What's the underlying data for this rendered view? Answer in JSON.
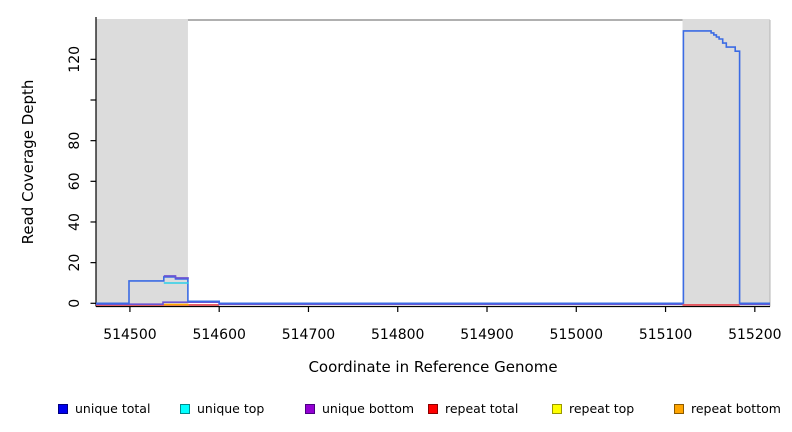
{
  "chart_data": {
    "type": "line",
    "title": "",
    "xlabel": "Coordinate in Reference Genome",
    "ylabel": "Read Coverage Depth",
    "xlim": [
      514462,
      515217
    ],
    "ylim": [
      0,
      139.4
    ],
    "grid": false,
    "legend_position": "bottom",
    "x_ticks": [
      {
        "v": 514500,
        "label": "514500"
      },
      {
        "v": 514600,
        "label": "514600"
      },
      {
        "v": 514700,
        "label": "514700"
      },
      {
        "v": 514800,
        "label": "514800"
      },
      {
        "v": 514900,
        "label": "514900"
      },
      {
        "v": 515000,
        "label": "515000"
      },
      {
        "v": 515100,
        "label": "515100"
      },
      {
        "v": 515200,
        "label": "515200"
      }
    ],
    "y_ticks": [
      {
        "v": 0,
        "label": "0"
      },
      {
        "v": 20,
        "label": "20"
      },
      {
        "v": 40,
        "label": "40"
      },
      {
        "v": 60,
        "label": "60"
      },
      {
        "v": 80,
        "label": "80"
      },
      {
        "v": 100,
        "label": ""
      },
      {
        "v": 120,
        "label": "120"
      }
    ],
    "shaded_regions": [
      {
        "x0": 514462,
        "x1": 514565,
        "fill": "#dcdcdc"
      },
      {
        "x0": 515119,
        "x1": 515217,
        "fill": "#dcdcdc"
      }
    ],
    "series": [
      {
        "id": "repeat-total",
        "legend": "repeat total",
        "line_color": "#e8454f",
        "legend_fill": "#ff0000",
        "legend_border": "#8b0000",
        "segments": [
          {
            "z": -3,
            "dy": 1.6,
            "points": [
              [
                514462,
                0
              ],
              [
                514600,
                0
              ]
            ]
          },
          {
            "z": -3,
            "dy": 1.6,
            "points": [
              [
                515119,
                0
              ],
              [
                515183,
                0
              ]
            ]
          }
        ]
      },
      {
        "id": "repeat-top",
        "legend": "repeat top",
        "line_color": "#f5e800",
        "legend_fill": "#ffff00",
        "legend_border": "#999900",
        "segments": []
      },
      {
        "id": "repeat-bottom",
        "legend": "repeat bottom",
        "line_color": "#ffa500",
        "legend_fill": "#ffa500",
        "legend_border": "#8b5a00",
        "segments": [
          {
            "z": -2,
            "dy": 1.3,
            "points": [
              [
                514538,
                0
              ],
              [
                514566,
                0
              ]
            ]
          }
        ]
      },
      {
        "id": "unique-bottom",
        "legend": "unique bottom",
        "line_color": "#6c53d2",
        "legend_fill": "#9400d3",
        "legend_border": "#4b0082",
        "segments": [
          {
            "z": -1,
            "dy": 0.9,
            "points": [
              [
                514462,
                0
              ],
              [
                514537,
                0
              ],
              [
                514537,
                1
              ],
              [
                514600,
                1
              ],
              [
                514600,
                0
              ],
              [
                515119,
                0
              ]
            ]
          },
          {
            "z": -1,
            "dy": 0.9,
            "points": [
              [
                515183,
                0
              ],
              [
                515217,
                0
              ]
            ]
          },
          {
            "z": 2,
            "dy": -1.0,
            "points": [
              [
                514538,
                13
              ],
              [
                514551,
                13
              ],
              [
                514551,
                12
              ],
              [
                514566,
                12
              ]
            ]
          }
        ]
      },
      {
        "id": "unique-total",
        "legend": "unique total",
        "line_color": "#3b6be4",
        "legend_fill": "#0000ee",
        "legend_border": "#000080",
        "segments": [
          {
            "z": 0,
            "dy": 0,
            "points": [
              [
                514462,
                0
              ],
              [
                514499,
                0
              ],
              [
                514499,
                11
              ],
              [
                514538,
                11
              ],
              [
                514538,
                13
              ],
              [
                514551,
                13
              ],
              [
                514551,
                12
              ],
              [
                514565,
                12
              ],
              [
                514565,
                1
              ],
              [
                514600,
                1
              ],
              [
                514600,
                0
              ],
              [
                515120,
                0
              ],
              [
                515120,
                134
              ],
              [
                515151,
                134
              ],
              [
                515151,
                133
              ],
              [
                515154,
                133
              ],
              [
                515154,
                132
              ],
              [
                515157,
                132
              ],
              [
                515157,
                131
              ],
              [
                515160,
                131
              ],
              [
                515160,
                130
              ],
              [
                515164,
                130
              ],
              [
                515164,
                128
              ],
              [
                515168,
                128
              ],
              [
                515168,
                126
              ],
              [
                515178,
                126
              ],
              [
                515178,
                124
              ],
              [
                515183,
                124
              ],
              [
                515183,
                0
              ],
              [
                515217,
                0
              ]
            ]
          }
        ]
      },
      {
        "id": "unique-top",
        "legend": "unique top",
        "line_color": "#2bd0e8",
        "legend_fill": "#00ffff",
        "legend_border": "#008b8b",
        "segments": [
          {
            "z": 1,
            "dy": 0,
            "points": [
              [
                514538,
                10
              ],
              [
                514566,
                10
              ]
            ]
          }
        ]
      }
    ]
  },
  "legend": {
    "items": [
      {
        "label": "unique total",
        "fill": "#0000ee",
        "border": "#000080"
      },
      {
        "label": "unique top",
        "fill": "#00ffff",
        "border": "#008b8b"
      },
      {
        "label": "unique bottom",
        "fill": "#9400d3",
        "border": "#4b0082"
      },
      {
        "label": "repeat total",
        "fill": "#ff0000",
        "border": "#8b0000"
      },
      {
        "label": "repeat top",
        "fill": "#ffff00",
        "border": "#999900"
      },
      {
        "label": "repeat bottom",
        "fill": "#ffa500",
        "border": "#8b5a00"
      }
    ]
  }
}
